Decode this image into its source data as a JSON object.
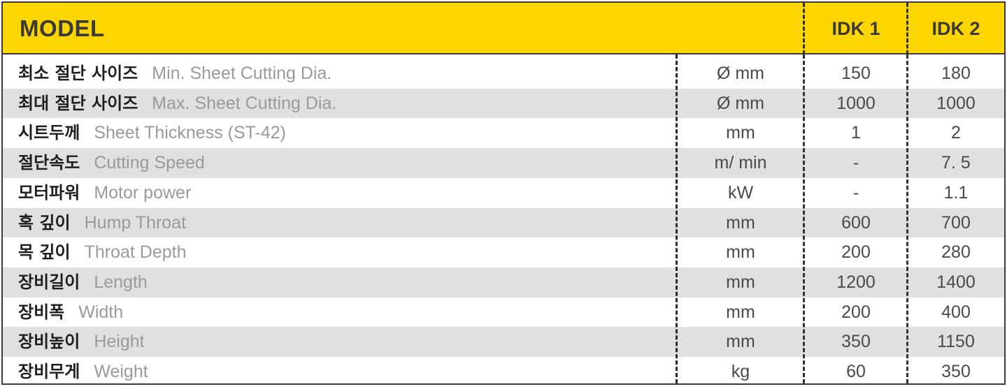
{
  "header": {
    "model_label": "MODEL",
    "columns": [
      "IDK 1",
      "IDK 2"
    ]
  },
  "rows": [
    {
      "ko": "최소 절단 사이즈",
      "en": "Min. Sheet Cutting Dia.",
      "unit": "Ø mm",
      "idk1": "150",
      "idk2": "180"
    },
    {
      "ko": "최대 절단 사이즈",
      "en": "Max. Sheet Cutting Dia.",
      "unit": "Ø mm",
      "idk1": "1000",
      "idk2": "1000"
    },
    {
      "ko": "시트두께",
      "en": "Sheet Thickness (ST-42)",
      "unit": "mm",
      "idk1": "1",
      "idk2": "2"
    },
    {
      "ko": "절단속도",
      "en": "Cutting Speed",
      "unit": "m/ min",
      "idk1": "-",
      "idk2": "7. 5"
    },
    {
      "ko": "모터파워",
      "en": "Motor power",
      "unit": "kW",
      "idk1": "-",
      "idk2": "1.1"
    },
    {
      "ko": "혹 깊이",
      "en": "Hump Throat",
      "unit": "mm",
      "idk1": "600",
      "idk2": "700"
    },
    {
      "ko": "목 깊이",
      "en": "Throat Depth",
      "unit": "mm",
      "idk1": "200",
      "idk2": "280"
    },
    {
      "ko": "장비길이",
      "en": "Length",
      "unit": "mm",
      "idk1": "1200",
      "idk2": "1400"
    },
    {
      "ko": "장비폭",
      "en": "Width",
      "unit": "mm",
      "idk1": "200",
      "idk2": "400"
    },
    {
      "ko": "장비높이",
      "en": "Height",
      "unit": "mm",
      "idk1": "350",
      "idk2": "1150"
    },
    {
      "ko": "장비무게",
      "en": "Weight",
      "unit": "kg",
      "idk1": "60",
      "idk2": "350"
    }
  ],
  "colors": {
    "header_bg": "#fdd600",
    "alt_row_bg": "#e0e0e0",
    "border": "#3a3a3a"
  }
}
